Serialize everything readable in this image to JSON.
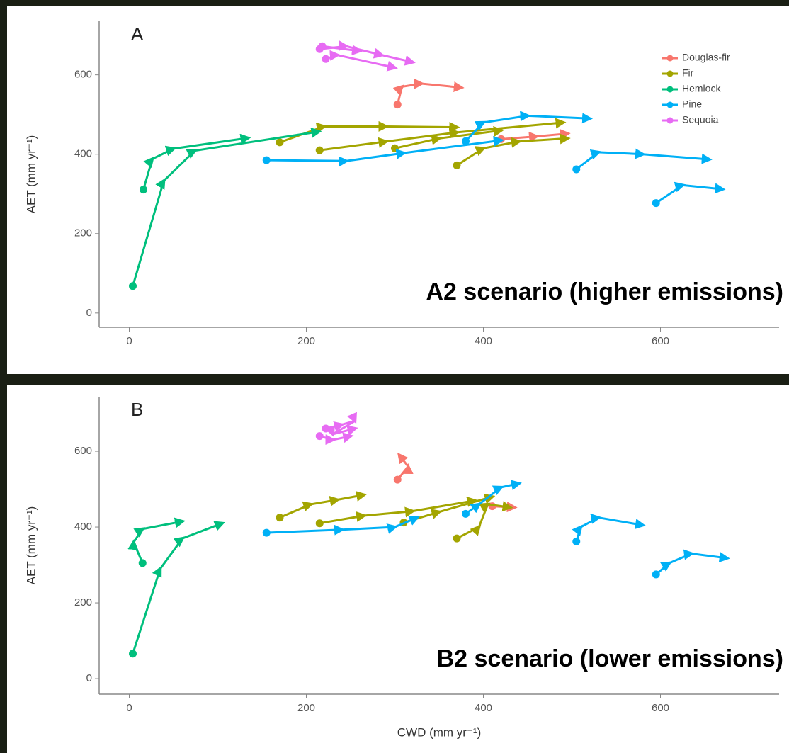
{
  "chart_data": [
    {
      "type": "line",
      "panel_label": "A",
      "annotation": "A2 scenario (higher emissions)",
      "y_label": "AET (mm yr⁻¹)",
      "xlim": [
        -34,
        734
      ],
      "ylim": [
        -36,
        735
      ],
      "xticks": [
        0,
        200,
        400,
        600
      ],
      "yticks": [
        0,
        200,
        400,
        600
      ],
      "grid": false,
      "legend": "top-right",
      "series": [
        {
          "name": "Douglas-fir",
          "color": "#F8766D",
          "x": [
            303,
            308,
            330,
            375,
            null,
            420,
            460,
            495
          ],
          "values": [
            525,
            570,
            578,
            568,
            null,
            438,
            445,
            452
          ]
        },
        {
          "name": "Fir",
          "color": "#A3A500",
          "x": [
            170,
            220,
            290,
            370,
            null,
            215,
            290,
            370,
            490,
            null,
            300,
            350,
            420,
            null,
            370,
            400,
            440,
            495
          ],
          "values": [
            430,
            470,
            470,
            468,
            null,
            410,
            432,
            455,
            480,
            null,
            415,
            440,
            460,
            null,
            372,
            415,
            432,
            440
          ]
        },
        {
          "name": "Hemlock",
          "color": "#00BF7D",
          "x": [
            4,
            39,
            74,
            214,
            null,
            16,
            26,
            50,
            134
          ],
          "values": [
            68,
            333,
            409,
            457,
            null,
            311,
            388,
            414,
            441
          ]
        },
        {
          "name": "Pine",
          "color": "#00B0F6",
          "x": [
            155,
            245,
            310,
            420,
            null,
            380,
            400,
            450,
            520,
            null,
            505,
            530,
            580,
            655,
            null,
            595,
            625,
            670
          ],
          "values": [
            385,
            383,
            403,
            435,
            null,
            433,
            480,
            497,
            490,
            null,
            362,
            405,
            400,
            387,
            null,
            277,
            322,
            312
          ]
        },
        {
          "name": "Sequoia",
          "color": "#E76BF3",
          "x": [
            215,
            245,
            285,
            320,
            null,
            222,
            235,
            300,
            null,
            218,
            260
          ],
          "values": [
            665,
            672,
            650,
            632,
            null,
            640,
            650,
            618,
            null,
            672,
            660
          ]
        }
      ]
    },
    {
      "type": "line",
      "panel_label": "B",
      "annotation": "B2 scenario (lower emissions)",
      "x_label": "CWD (mm yr⁻¹)",
      "y_label": "AET (mm yr⁻¹)",
      "xlim": [
        -34,
        734
      ],
      "ylim": [
        -41,
        744
      ],
      "xticks": [
        0,
        200,
        400,
        600
      ],
      "yticks": [
        0,
        200,
        400,
        600
      ],
      "grid": false,
      "legend": "none",
      "series": [
        {
          "name": "Douglas-fir",
          "color": "#F8766D",
          "x": [
            303,
            315,
            305,
            null,
            410,
            435
          ],
          "values": [
            525,
            560,
            590,
            null,
            455,
            452
          ]
        },
        {
          "name": "Fir",
          "color": "#A3A500",
          "x": [
            170,
            205,
            235,
            265,
            null,
            215,
            265,
            320,
            390,
            null,
            310,
            350,
            410,
            null,
            370,
            395,
            405,
            430
          ],
          "values": [
            425,
            460,
            472,
            485,
            null,
            410,
            430,
            442,
            470,
            null,
            412,
            440,
            480,
            null,
            370,
            400,
            460,
            452
          ]
        },
        {
          "name": "Hemlock",
          "color": "#00BF7D",
          "x": [
            4,
            35,
            60,
            105,
            null,
            15,
            5,
            15,
            60
          ],
          "values": [
            66,
            290,
            370,
            410,
            null,
            305,
            360,
            395,
            415
          ]
        },
        {
          "name": "Pine",
          "color": "#00B0F6",
          "x": [
            155,
            240,
            300,
            325,
            null,
            380,
            395,
            420,
            440,
            null,
            505,
            510,
            530,
            580,
            null,
            595,
            610,
            635,
            675
          ],
          "values": [
            385,
            393,
            400,
            425,
            null,
            435,
            460,
            505,
            515,
            null,
            362,
            400,
            425,
            405,
            null,
            275,
            305,
            330,
            318
          ]
        },
        {
          "name": "Sequoia",
          "color": "#E76BF3",
          "x": [
            222,
            240,
            255,
            230,
            255,
            null,
            215,
            230,
            250
          ],
          "values": [
            660,
            670,
            680,
            645,
            660,
            null,
            640,
            630,
            640
          ]
        }
      ]
    }
  ]
}
